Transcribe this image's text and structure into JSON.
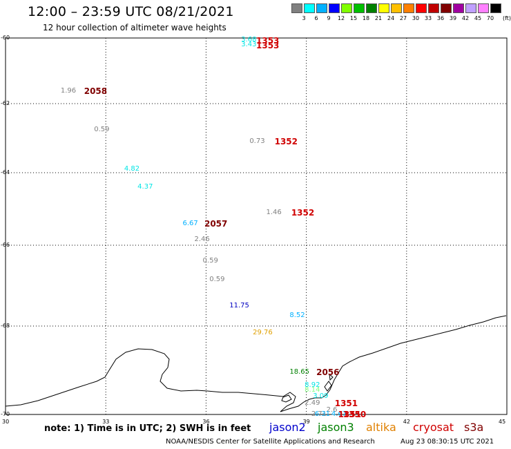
{
  "header": {
    "title": "12:00 – 23:59 UTC 08/21/2021",
    "subtitle": "12 hour collection of altimeter wave heights"
  },
  "colorbar": {
    "unit": "(ft)",
    "bins": [
      {
        "label": "3",
        "color": "#808080"
      },
      {
        "label": "6",
        "color": "#00ffff"
      },
      {
        "label": "9",
        "color": "#00b0ff"
      },
      {
        "label": "12",
        "color": "#0000ff"
      },
      {
        "label": "15",
        "color": "#80ff00"
      },
      {
        "label": "18",
        "color": "#00c000"
      },
      {
        "label": "21",
        "color": "#008000"
      },
      {
        "label": "24",
        "color": "#ffff00"
      },
      {
        "label": "27",
        "color": "#ffc000"
      },
      {
        "label": "30",
        "color": "#ff8000"
      },
      {
        "label": "33",
        "color": "#ff0000"
      },
      {
        "label": "36",
        "color": "#c00000"
      },
      {
        "label": "39",
        "color": "#800000"
      },
      {
        "label": "42",
        "color": "#a000a0"
      },
      {
        "label": "45",
        "color": "#c0a0ff"
      },
      {
        "label": "70",
        "color": "#ff80ff"
      },
      {
        "label": "",
        "color": "#000000"
      }
    ]
  },
  "axes": {
    "lat_labels": [
      "-60",
      "-62",
      "-64",
      "-66",
      "-68",
      "-70"
    ],
    "lon_labels": [
      "30",
      "33",
      "36",
      "39",
      "42",
      "45"
    ]
  },
  "observations": [
    {
      "value": "3.68",
      "lon": 37.05,
      "lat": -60.07,
      "color": "#00e5e5"
    },
    {
      "value": "3.43",
      "lon": 37.05,
      "lat": -60.22,
      "color": "#00e5e5"
    },
    {
      "value": "1.96",
      "lon": 31.65,
      "lat": -61.62,
      "color": "#808080"
    },
    {
      "value": "0.59",
      "lon": 32.65,
      "lat": -62.75,
      "color": "#808080"
    },
    {
      "value": "0.73",
      "lon": 37.3,
      "lat": -63.1,
      "color": "#808080"
    },
    {
      "value": "4.82",
      "lon": 33.55,
      "lat": -63.9,
      "color": "#00e5e5"
    },
    {
      "value": "4.37",
      "lon": 33.95,
      "lat": -64.4,
      "color": "#00e5e5"
    },
    {
      "value": "1.46",
      "lon": 37.8,
      "lat": -65.1,
      "color": "#808080"
    },
    {
      "value": "6.67",
      "lon": 35.3,
      "lat": -65.4,
      "color": "#00b0ff"
    },
    {
      "value": "2.46",
      "lon": 35.65,
      "lat": -65.85,
      "color": "#808080"
    },
    {
      "value": "0.59",
      "lon": 35.9,
      "lat": -66.4,
      "color": "#808080"
    },
    {
      "value": "0.59",
      "lon": 36.1,
      "lat": -66.85,
      "color": "#808080"
    },
    {
      "value": "11.75",
      "lon": 36.7,
      "lat": -67.5,
      "color": "#0000c0"
    },
    {
      "value": "8.52",
      "lon": 38.5,
      "lat": -67.75,
      "color": "#00b0ff"
    },
    {
      "value": "29.76",
      "lon": 37.4,
      "lat": -68.15,
      "color": "#e0a000"
    },
    {
      "value": "18.65",
      "lon": 38.5,
      "lat": -69.05,
      "color": "#008000"
    },
    {
      "value": "8.92",
      "lon": 38.95,
      "lat": -69.35,
      "color": "#00e5e5"
    },
    {
      "value": "8.14",
      "lon": 38.95,
      "lat": -69.45,
      "color": "#80ff80"
    },
    {
      "value": "3.09",
      "lon": 39.2,
      "lat": -69.6,
      "color": "#00e5e5"
    },
    {
      "value": "2.49",
      "lon": 38.95,
      "lat": -69.75,
      "color": "#808080"
    },
    {
      "value": "2.71",
      "lon": 39.15,
      "lat": -70.05,
      "color": "#808080"
    },
    {
      "value": "2.6",
      "lon": 39.6,
      "lat": -69.9,
      "color": "#808080"
    },
    {
      "value": "6.31",
      "lon": 39.25,
      "lat": -70.35,
      "color": "#00b0ff"
    },
    {
      "value": "4.67",
      "lon": 39.75,
      "lat": -70.15,
      "color": "#00b0ff"
    }
  ],
  "pass_ids": [
    {
      "label": "1353",
      "lon": 37.5,
      "lat": -60.08,
      "color": "#d00000"
    },
    {
      "label": "1353",
      "lon": 37.5,
      "lat": -60.23,
      "color": "#d00000"
    },
    {
      "label": "2058",
      "lon": 32.35,
      "lat": -61.62,
      "color": "#800000"
    },
    {
      "label": "1352",
      "lon": 38.05,
      "lat": -63.1,
      "color": "#d00000"
    },
    {
      "label": "1352",
      "lon": 38.55,
      "lat": -65.1,
      "color": "#d00000"
    },
    {
      "label": "2057",
      "lon": 35.95,
      "lat": -65.4,
      "color": "#800000"
    },
    {
      "label": "2056",
      "lon": 39.3,
      "lat": -69.05,
      "color": "#800000"
    },
    {
      "label": "1351",
      "lon": 39.85,
      "lat": -69.75,
      "color": "#d00000"
    },
    {
      "label": "1351",
      "lon": 39.95,
      "lat": -70.03,
      "color": "#d00000"
    },
    {
      "label": "1350",
      "lon": 40.1,
      "lat": -70.33,
      "color": "#d00000"
    }
  ],
  "footer": {
    "note": "note:  1) Time is in UTC;  2) SWH is in feet",
    "satellites": [
      {
        "name": "jason2",
        "color": "#0000cc"
      },
      {
        "name": "jason3",
        "color": "#008000"
      },
      {
        "name": "altika",
        "color": "#e08000"
      },
      {
        "name": "cryosat",
        "color": "#d00000"
      },
      {
        "name": "s3a",
        "color": "#800000"
      }
    ],
    "credit": "NOAA/NESDIS Center for Satellite Applications and Research",
    "timestamp": "Aug 23 08:30:15 UTC 2021"
  }
}
